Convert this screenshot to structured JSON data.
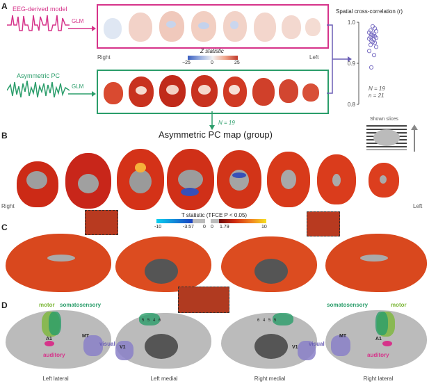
{
  "panels": {
    "a": "A",
    "b": "B",
    "c": "C",
    "d": "D"
  },
  "panel_a": {
    "eeg_label": "EEG-derived model",
    "pc_label": "Asymmetric PC",
    "glm_top": "GLM",
    "glm_bottom": "GLM",
    "right": "Right",
    "left": "Left",
    "colorbar": {
      "title": "Z statistic",
      "min": "−25",
      "mid": "0",
      "max": "25"
    },
    "n_arrow": "N = 19",
    "colors": {
      "eeg": "#d6338a",
      "pc": "#2a9d6a",
      "arrow": "#6b5fb5"
    }
  },
  "chart_data": {
    "type": "scatter",
    "title": "Spatial cross-correlation (r)",
    "ylim": [
      0.8,
      1.0
    ],
    "yticks": [
      "1.0",
      "0.9",
      "0.8"
    ],
    "values": [
      0.99,
      0.985,
      0.98,
      0.978,
      0.975,
      0.972,
      0.97,
      0.968,
      0.966,
      0.964,
      0.962,
      0.96,
      0.958,
      0.955,
      0.952,
      0.95,
      0.945,
      0.94,
      0.93,
      0.92,
      0.89
    ],
    "annotations": [
      "N = 19",
      "n = 21"
    ]
  },
  "panel_b": {
    "title": "Asymmetric PC map (group)",
    "shown_slices": "Shown slices",
    "right": "Right",
    "left": "Left"
  },
  "panel_c": {
    "colorbar": {
      "title": "T statistic (TFCE P < 0.05)",
      "neg_min": "-10",
      "neg_thr": "-3.57",
      "zero1": "0",
      "zero2": "0",
      "pos_thr": "1.79",
      "pos_max": "10"
    }
  },
  "panel_d": {
    "motor": "motor",
    "somatosensory": "somatosensory",
    "auditory": "auditory",
    "visual": "visual",
    "area_labels": {
      "a1": "A1",
      "mt": "MT",
      "v1": "V1",
      "s1": "5",
      "s2": "5",
      "s3": "4",
      "s4": "6"
    },
    "views": [
      "Left lateral",
      "Left medial",
      "Right medial",
      "Right lateral"
    ],
    "colors": {
      "motor": "#7db83a",
      "somatosensory": "#2a9d6a",
      "auditory": "#d6338a",
      "visual": "#6b5fb5"
    }
  }
}
